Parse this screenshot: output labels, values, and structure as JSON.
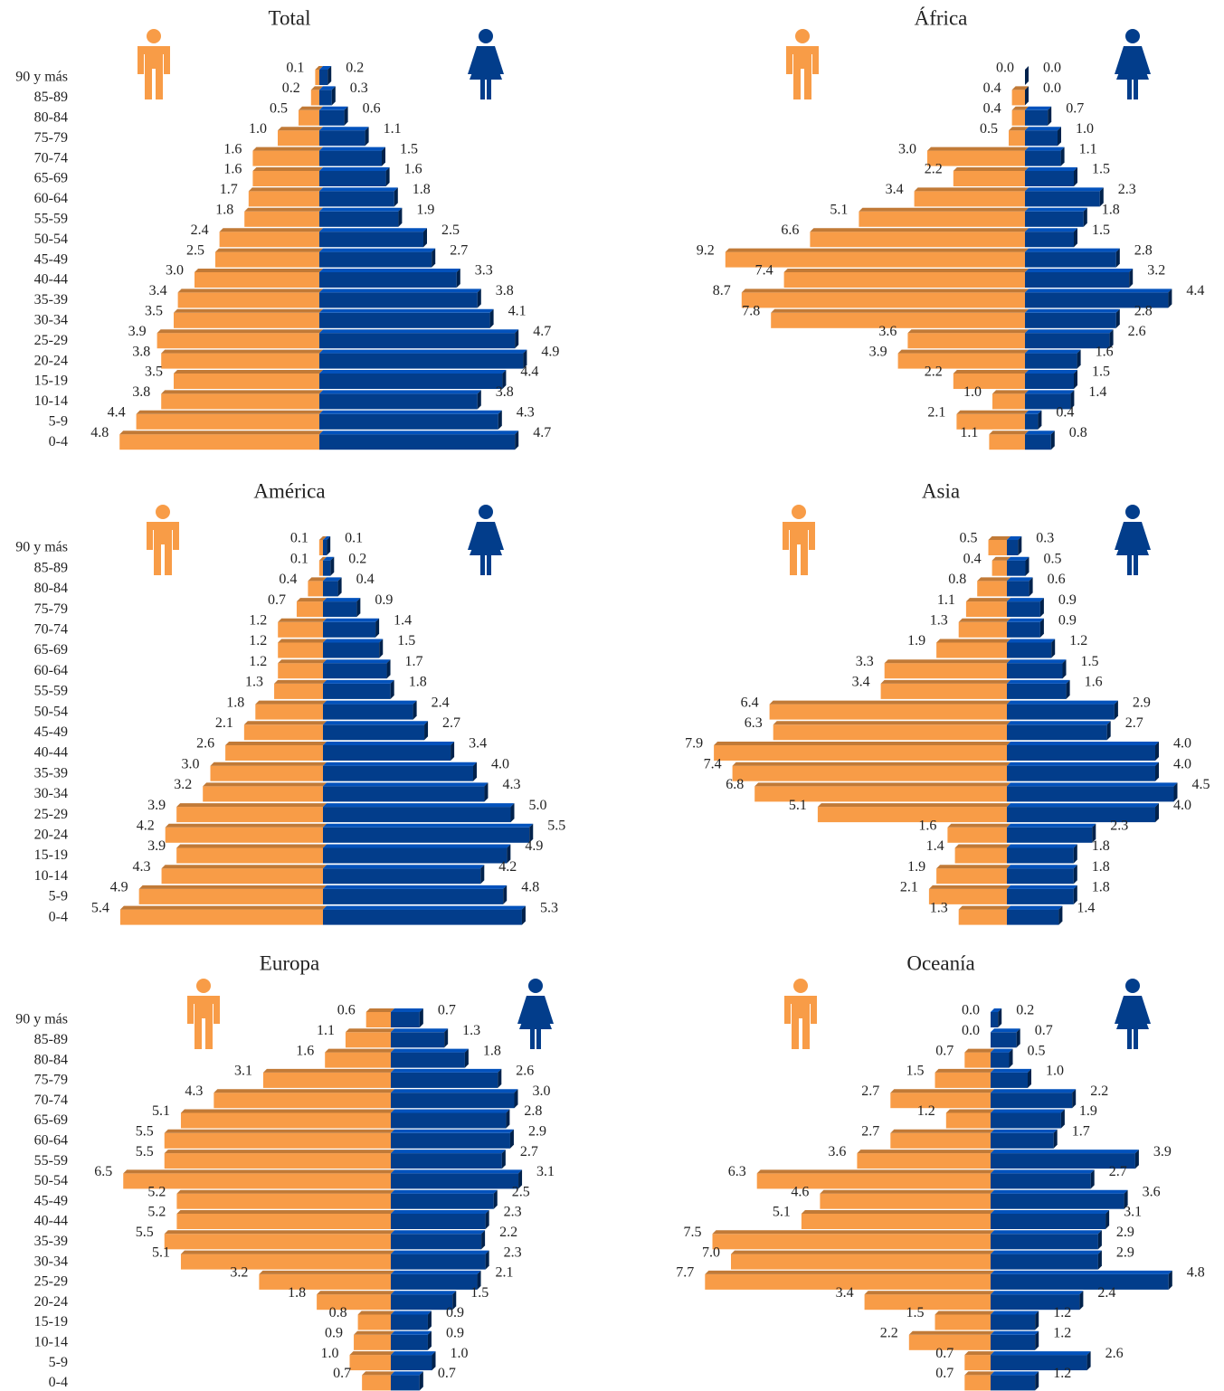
{
  "chart_data": [
    {
      "type": "pyramid",
      "title": "Total",
      "categories": [
        "90 y más",
        "85-89",
        "80-84",
        "75-79",
        "70-74",
        "65-69",
        "60-64",
        "55-59",
        "50-54",
        "45-49",
        "40-44",
        "35-39",
        "30-34",
        "25-29",
        "20-24",
        "15-19",
        "10-14",
        "5-9",
        "0-4"
      ],
      "series": [
        {
          "color": "#f89c47",
          "values": [
            0.1,
            0.2,
            0.5,
            1.0,
            1.6,
            1.6,
            1.7,
            1.8,
            2.4,
            2.5,
            3.0,
            3.4,
            3.5,
            3.9,
            3.8,
            3.5,
            3.8,
            4.4,
            4.8
          ],
          "value_labels": [
            "0.1",
            "0.2",
            "0.5",
            "1.0",
            "1.6",
            "1.6",
            "1.7",
            "1.8",
            "2.4",
            "2.5",
            "3.0",
            "3.4",
            "3.5",
            "3.9",
            "3.8",
            "3.5",
            "3.8",
            "4.4",
            "4.8"
          ]
        },
        {
          "color": "#023d8b",
          "values": [
            0.2,
            0.3,
            0.6,
            1.1,
            1.5,
            1.6,
            1.8,
            1.9,
            2.5,
            2.7,
            3.3,
            3.8,
            4.1,
            4.7,
            4.9,
            4.4,
            3.8,
            4.3,
            4.7
          ],
          "value_labels": [
            "0.2",
            "0.3",
            "0.6",
            "1.1",
            "1.5",
            "1.6",
            "1.8",
            "1.9",
            "2.5",
            "2.7",
            "3.3",
            "3.8",
            "4.1",
            "4.7",
            "4.9",
            "4.4",
            "3.8",
            "4.3",
            "4.7"
          ]
        }
      ]
    },
    {
      "type": "pyramid",
      "title": "África",
      "series": [
        {
          "color": "#f89c47",
          "values": [
            0.0,
            0.4,
            0.4,
            0.5,
            3.0,
            2.2,
            3.4,
            5.1,
            6.6,
            9.2,
            7.4,
            8.7,
            7.8,
            3.6,
            3.9,
            2.2,
            1.0,
            2.1,
            1.1
          ],
          "value_labels": [
            "0.0",
            "0.4",
            "0.4",
            "0.5",
            "3.0",
            "2.2",
            "3.4",
            "5.1",
            "6.6",
            "9.2",
            "7.4",
            "8.7",
            "7.8",
            "3.6",
            "3.9",
            "2.2",
            "1.0",
            "2.1",
            "1.1"
          ]
        },
        {
          "color": "#023d8b",
          "values": [
            0.0,
            0.0,
            0.7,
            1.0,
            1.1,
            1.5,
            2.3,
            1.8,
            1.5,
            2.8,
            3.2,
            4.4,
            2.8,
            2.6,
            1.6,
            1.5,
            1.4,
            0.4,
            0.8
          ],
          "value_labels": [
            "0.0",
            "0.0",
            "0.7",
            "1.0",
            "1.1",
            "1.5",
            "2.3",
            "1.8",
            "1.5",
            "2.8",
            "3.2",
            "4.4",
            "2.8",
            "2.6",
            "1.6",
            "1.5",
            "1.4",
            "0.4",
            "0.8"
          ]
        }
      ]
    },
    {
      "type": "pyramid",
      "title": "América",
      "categories": [
        "90 y más",
        "85-89",
        "80-84",
        "75-79",
        "70-74",
        "65-69",
        "60-64",
        "55-59",
        "50-54",
        "45-49",
        "40-44",
        "35-39",
        "30-34",
        "25-29",
        "20-24",
        "15-19",
        "10-14",
        "5-9",
        "0-4"
      ],
      "series": [
        {
          "color": "#f89c47",
          "values": [
            0.1,
            0.1,
            0.4,
            0.7,
            1.2,
            1.2,
            1.2,
            1.3,
            1.8,
            2.1,
            2.6,
            3.0,
            3.2,
            3.9,
            4.2,
            3.9,
            4.3,
            4.9,
            5.4
          ],
          "value_labels": [
            "0.1",
            "0.1",
            "0.4",
            "0.7",
            "1.2",
            "1.2",
            "1.2",
            "1.3",
            "1.8",
            "2.1",
            "2.6",
            "3.0",
            "3.2",
            "3.9",
            "4.2",
            "3.9",
            "4.3",
            "4.9",
            "5.4"
          ]
        },
        {
          "color": "#023d8b",
          "values": [
            0.1,
            0.2,
            0.4,
            0.9,
            1.4,
            1.5,
            1.7,
            1.8,
            2.4,
            2.7,
            3.4,
            4.0,
            4.3,
            5.0,
            5.5,
            4.9,
            4.2,
            4.8,
            5.3
          ],
          "value_labels": [
            "0.1",
            "0.2",
            "0.4",
            "0.9",
            "1.4",
            "1.5",
            "1.7",
            "1.8",
            "2.4",
            "2.7",
            "3.4",
            "4.0",
            "4.3",
            "5.0",
            "5.5",
            "4.9",
            "4.2",
            "4.8",
            "5.3"
          ]
        }
      ]
    },
    {
      "type": "pyramid",
      "title": "Asia",
      "series": [
        {
          "color": "#f89c47",
          "values": [
            0.5,
            0.4,
            0.8,
            1.1,
            1.3,
            1.9,
            3.3,
            3.4,
            6.4,
            6.3,
            7.9,
            7.4,
            6.8,
            5.1,
            1.6,
            1.4,
            1.9,
            2.1,
            1.3
          ],
          "value_labels": [
            "0.5",
            "0.4",
            "0.8",
            "1.1",
            "1.3",
            "1.9",
            "3.3",
            "3.4",
            "6.4",
            "6.3",
            "7.9",
            "7.4",
            "6.8",
            "5.1",
            "1.6",
            "1.4",
            "1.9",
            "2.1",
            "1.3"
          ]
        },
        {
          "color": "#023d8b",
          "values": [
            0.3,
            0.5,
            0.6,
            0.9,
            0.9,
            1.2,
            1.5,
            1.6,
            2.9,
            2.7,
            4.0,
            4.0,
            4.5,
            4.0,
            2.3,
            1.8,
            1.8,
            1.8,
            1.4
          ],
          "value_labels": [
            "0.3",
            "0.5",
            "0.6",
            "0.9",
            "0.9",
            "1.2",
            "1.5",
            "1.6",
            "2.9",
            "2.7",
            "4.0",
            "4.0",
            "4.5",
            "4.0",
            "2.3",
            "1.8",
            "1.8",
            "1.8",
            "1.4"
          ]
        }
      ]
    },
    {
      "type": "pyramid",
      "title": "Europa",
      "categories": [
        "90 y más",
        "85-89",
        "80-84",
        "75-79",
        "70-74",
        "65-69",
        "60-64",
        "55-59",
        "50-54",
        "45-49",
        "40-44",
        "35-39",
        "30-34",
        "25-29",
        "20-24",
        "15-19",
        "10-14",
        "5-9",
        "0-4"
      ],
      "series": [
        {
          "color": "#f89c47",
          "values": [
            0.6,
            1.1,
            1.6,
            3.1,
            4.3,
            5.1,
            5.5,
            5.5,
            6.5,
            5.2,
            5.2,
            5.5,
            5.1,
            3.2,
            1.8,
            0.8,
            0.9,
            1.0,
            0.7
          ],
          "value_labels": [
            "0.6",
            "1.1",
            "1.6",
            "3.1",
            "4.3",
            "5.1",
            "5.5",
            "5.5",
            "6.5",
            "5.2",
            "5.2",
            "5.5",
            "5.1",
            "3.2",
            "1.8",
            "0.8",
            "0.9",
            "1.0",
            "0.7"
          ]
        },
        {
          "color": "#023d8b",
          "values": [
            0.7,
            1.3,
            1.8,
            2.6,
            3.0,
            2.8,
            2.9,
            2.7,
            3.1,
            2.5,
            2.3,
            2.2,
            2.3,
            2.1,
            1.5,
            0.9,
            0.9,
            1.0,
            0.7
          ],
          "value_labels": [
            "0.7",
            "1.3",
            "1.8",
            "2.6",
            "3.0",
            "2.8",
            "2.9",
            "2.7",
            "3.1",
            "2.5",
            "2.3",
            "2.2",
            "2.3",
            "2.1",
            "1.5",
            "0.9",
            "0.9",
            "1.0",
            "0.7"
          ]
        }
      ]
    },
    {
      "type": "pyramid",
      "title": "Oceanía",
      "series": [
        {
          "color": "#f89c47",
          "values": [
            0.0,
            0.0,
            0.7,
            1.5,
            2.7,
            1.2,
            2.7,
            3.6,
            6.3,
            4.6,
            5.1,
            7.5,
            7.0,
            7.7,
            3.4,
            1.5,
            2.2,
            0.7,
            0.7
          ],
          "value_labels": [
            "0.0",
            "0.0",
            "0.7",
            "1.5",
            "2.7",
            "1.2",
            "2.7",
            "3.6",
            "6.3",
            "4.6",
            "5.1",
            "7.5",
            "7.0",
            "7.7",
            "3.4",
            "1.5",
            "2.2",
            "0.7",
            "0.7"
          ]
        },
        {
          "color": "#023d8b",
          "values": [
            0.2,
            0.7,
            0.5,
            1.0,
            2.2,
            1.9,
            1.7,
            3.9,
            2.7,
            3.6,
            3.1,
            2.9,
            2.9,
            4.8,
            2.4,
            1.2,
            1.2,
            2.6,
            1.2
          ],
          "value_labels": [
            "0.2",
            "0.7",
            "0.5",
            "1.0",
            "2.2",
            "1.9",
            "1.7",
            "3.9",
            "2.7",
            "3.6",
            "3.1",
            "2.9",
            "2.9",
            "4.8",
            "2.4",
            "1.2",
            "1.2",
            "2.6",
            "1.2"
          ]
        }
      ]
    }
  ]
}
